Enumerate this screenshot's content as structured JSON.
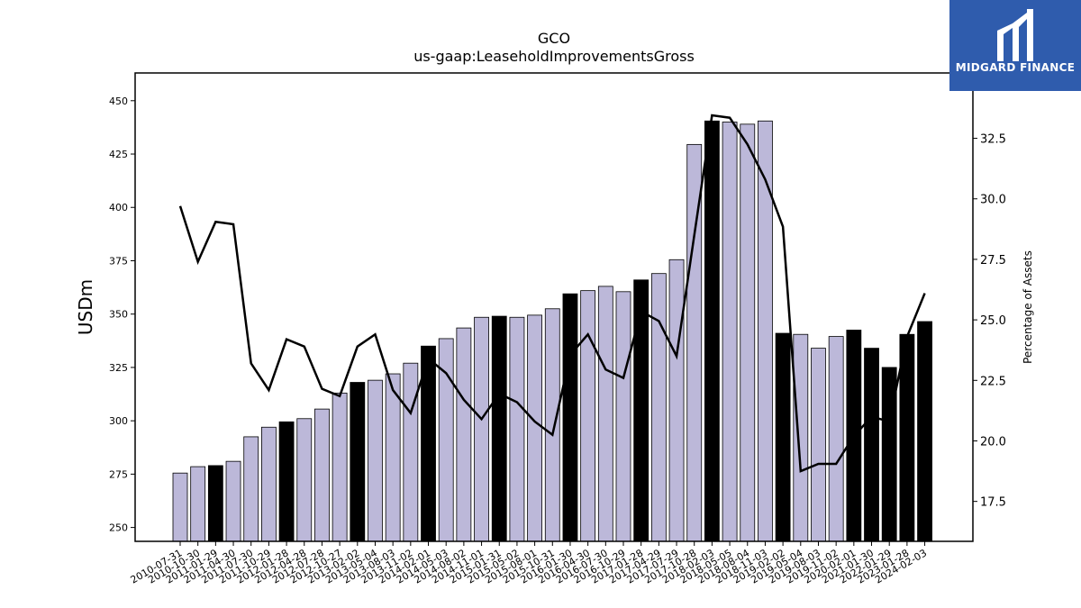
{
  "chart_data": {
    "type": "bar+line",
    "title": "GCO",
    "subtitle": "us-gaap:LeaseholdImprovementsGross",
    "ylabel": "USDm",
    "y2label": "Percentage of Assets",
    "ylim": [
      243.5,
      463
    ],
    "y2lim": [
      15.85,
      35.2
    ],
    "yticks": [
      250,
      275,
      300,
      325,
      350,
      375,
      400,
      425,
      450
    ],
    "y2ticks": [
      17.5,
      20.0,
      22.5,
      25.0,
      27.5,
      30.0,
      32.5
    ],
    "y2tick_labels": [
      "17.5",
      "20.0",
      "22.5",
      "25.0",
      "27.5",
      "30.0",
      "32.5"
    ],
    "categories": [
      "2010-07-31",
      "2010-10-30",
      "2011-01-29",
      "2011-04-30",
      "2011-07-30",
      "2011-10-29",
      "2012-01-28",
      "2012-04-28",
      "2012-07-28",
      "2012-10-27",
      "2013-02-02",
      "2013-05-04",
      "2013-08-03",
      "2013-11-02",
      "2014-02-01",
      "2014-05-03",
      "2014-08-02",
      "2014-11-01",
      "2015-01-31",
      "2015-05-02",
      "2015-08-01",
      "2015-10-31",
      "2016-01-30",
      "2016-04-30",
      "2016-07-30",
      "2016-10-29",
      "2017-01-28",
      "2017-04-29",
      "2017-07-29",
      "2017-10-28",
      "2018-02-03",
      "2018-05-05",
      "2018-08-04",
      "2018-11-03",
      "2019-02-02",
      "2019-05-04",
      "2019-08-03",
      "2019-11-02",
      "2020-02-01",
      "2021-01-30",
      "2022-01-29",
      "2023-01-28",
      "2024-02-03"
    ],
    "series": [
      {
        "kind": "bar",
        "values": [
          275.5,
          278.5,
          279.0,
          281.0,
          292.5,
          297.0,
          299.5,
          301.0,
          305.5,
          313.0,
          318.0,
          319.0,
          322.0,
          327.0,
          335.0,
          338.5,
          343.5,
          348.5,
          349.0,
          348.5,
          349.5,
          352.5,
          359.5,
          361.0,
          363.0,
          360.5,
          366.0,
          369.0,
          375.5,
          429.5,
          440.5,
          440.0,
          439.0,
          440.5,
          341.0,
          340.5,
          334.0,
          339.5,
          342.5,
          334.0,
          325.0,
          340.5,
          346.5
        ],
        "fiscal_year_end": [
          false,
          false,
          true,
          false,
          false,
          false,
          true,
          false,
          false,
          false,
          true,
          false,
          false,
          false,
          true,
          false,
          false,
          false,
          true,
          false,
          false,
          false,
          true,
          false,
          false,
          false,
          true,
          false,
          false,
          false,
          true,
          false,
          false,
          false,
          true,
          false,
          false,
          false,
          true,
          true,
          true,
          true,
          true
        ]
      },
      {
        "kind": "line",
        "axis": "right",
        "values": [
          29.7,
          27.4,
          29.05,
          28.95,
          23.2,
          22.1,
          24.2,
          23.9,
          22.15,
          21.85,
          23.9,
          24.4,
          22.1,
          21.15,
          23.4,
          22.8,
          21.7,
          20.9,
          21.95,
          21.6,
          20.8,
          20.25,
          23.55,
          24.4,
          22.95,
          22.6,
          25.35,
          24.95,
          23.5,
          28.5,
          33.45,
          33.35,
          32.25,
          30.8,
          28.85,
          18.75,
          19.05,
          19.05,
          20.2,
          21.0,
          20.8,
          24.3,
          26.1
        ]
      }
    ],
    "colors": {
      "bar": "#bcb8d9",
      "bar_fiscal": "#000000",
      "line": "#000000"
    }
  },
  "logo": {
    "text": "MIDGARD FINANCE",
    "background": "#2f5cad"
  }
}
